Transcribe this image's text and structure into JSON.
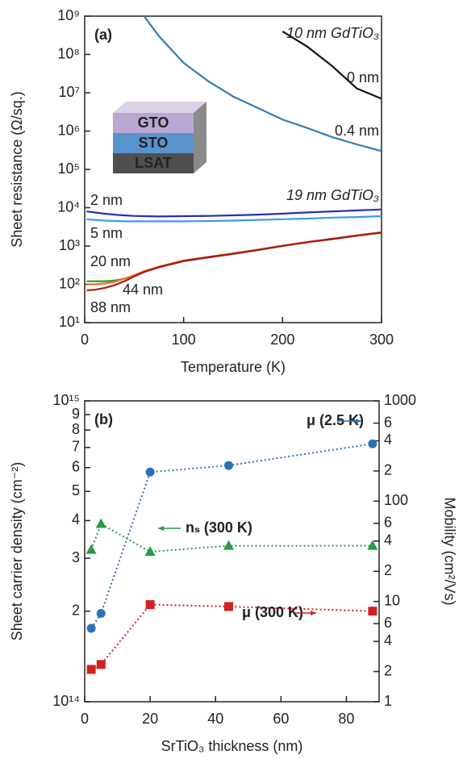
{
  "chart_data": [
    {
      "type": "line",
      "title": "(a)",
      "x": [
        2,
        10,
        20,
        30,
        40,
        50,
        60,
        75,
        100,
        125,
        150,
        175,
        200,
        225,
        250,
        275,
        300
      ],
      "series": [
        {
          "name": "0 nm",
          "color": "#111111",
          "values": [
            null,
            null,
            null,
            null,
            null,
            null,
            null,
            null,
            null,
            null,
            null,
            null,
            400000000,
            160000000,
            50000000,
            13000000,
            7000000
          ]
        },
        {
          "name": "0.4 nm",
          "color": "#2f7fb8",
          "values": [
            null,
            null,
            null,
            null,
            null,
            null,
            1000000000,
            300000000,
            60000000,
            20000000,
            8000000,
            4000000,
            2000000,
            1200000,
            700000,
            450000,
            300000
          ]
        },
        {
          "name": "2 nm",
          "color": "#2a2fb0",
          "values": [
            8000,
            7500,
            7000,
            6600,
            6300,
            6100,
            6000,
            5900,
            6000,
            6100,
            6300,
            6600,
            7000,
            7500,
            8000,
            8500,
            9000
          ]
        },
        {
          "name": "5 nm",
          "color": "#3b9de0",
          "values": [
            5000,
            4800,
            4600,
            4500,
            4400,
            4400,
            4400,
            4400,
            4400,
            4500,
            4600,
            4800,
            5000,
            5200,
            5500,
            5700,
            6000
          ]
        },
        {
          "name": "20 nm",
          "color": "#2a9a2a",
          "values": [
            120,
            120,
            120,
            125,
            140,
            170,
            210,
            280,
            400,
            500,
            620,
            780,
            1000,
            1250,
            1500,
            1850,
            2200
          ]
        },
        {
          "name": "44 nm",
          "color": "#f07020",
          "values": [
            100,
            100,
            105,
            115,
            140,
            175,
            220,
            290,
            420,
            520,
            640,
            800,
            1020,
            1270,
            1550,
            1900,
            2300
          ]
        },
        {
          "name": "88 nm",
          "color": "#b01515",
          "values": [
            70,
            72,
            80,
            95,
            120,
            160,
            210,
            280,
            410,
            510,
            630,
            790,
            1010,
            1260,
            1530,
            1870,
            2250
          ]
        }
      ],
      "xlim": [
        0,
        300
      ],
      "xticks": [
        0,
        100,
        200,
        300
      ],
      "ylim": [
        10,
        1000000000
      ],
      "yticks": [
        {
          "value": 10,
          "label": "10¹"
        },
        {
          "value": 100,
          "label": "10²"
        },
        {
          "value": 1000,
          "label": "10³"
        },
        {
          "value": 10000,
          "label": "10⁴"
        },
        {
          "value": 100000,
          "label": "10⁵"
        },
        {
          "value": 1000000,
          "label": "10⁶"
        },
        {
          "value": 10000000,
          "label": "10⁷"
        },
        {
          "value": 100000000,
          "label": "10⁸"
        },
        {
          "value": 1000000000,
          "label": "10⁹"
        }
      ],
      "log_y": true,
      "xlabel": "Temperature (K)",
      "ylabel": "Sheet resistance (Ω/sq.)",
      "annotations": [
        "10 nm GdTiO₃",
        "19 nm GdTiO₃"
      ],
      "inset_labels": [
        "GTO",
        "STO",
        "LSAT"
      ]
    },
    {
      "type": "line",
      "title": "(b)",
      "x": [
        2,
        5,
        20,
        44,
        88
      ],
      "series": [
        {
          "name": "μ (2.5 K)",
          "color": "#2a72b5",
          "marker": "circle",
          "axis": "y2",
          "values": [
            5.4,
            7.6,
            195,
            227,
            373
          ]
        },
        {
          "name": "nₛ (300 K)",
          "color": "#2a9a4a",
          "marker": "triangle",
          "values": [
            320000000000000.0,
            390000000000000.0,
            315000000000000.0,
            330000000000000.0,
            330000000000000.0
          ]
        },
        {
          "name": "μ (300 K)",
          "color": "#d42020",
          "marker": "square",
          "axis": "y2",
          "values": [
            2.1,
            2.35,
            9.3,
            8.9,
            8.0
          ]
        }
      ],
      "xlim": [
        0,
        90
      ],
      "xticks": [
        0,
        20,
        40,
        60,
        80
      ],
      "ylim": [
        100000000000000.0,
        1000000000000000.0
      ],
      "yticks": [
        {
          "value": 100000000000000.0,
          "label": "10¹⁴"
        },
        {
          "value": 200000000000000.0,
          "label": "2"
        },
        {
          "value": 300000000000000.0,
          "label": "3"
        },
        {
          "value": 400000000000000.0,
          "label": "4"
        },
        {
          "value": 500000000000000.0,
          "label": "5"
        },
        {
          "value": 600000000000000.0,
          "label": "6"
        },
        {
          "value": 700000000000000.0,
          "label": "7"
        },
        {
          "value": 800000000000000.0,
          "label": "8"
        },
        {
          "value": 900000000000000.0,
          "label": "9"
        },
        {
          "value": 1000000000000000.0,
          "label": "10¹⁵"
        }
      ],
      "y2lim": [
        1,
        1000
      ],
      "y2ticks": [
        1,
        2,
        4,
        6,
        10,
        {
          "value": 20,
          "label": "2"
        },
        {
          "value": 40,
          "label": "4"
        },
        {
          "value": 60,
          "label": "6"
        },
        100,
        {
          "value": 200,
          "label": "2"
        },
        {
          "value": 400,
          "label": "4"
        },
        {
          "value": 600,
          "label": "6"
        },
        1000
      ],
      "log_y": true,
      "xlabel": "SrTiO₃ thickness (nm)",
      "ylabel": "Sheet carrier density (cm⁻²)",
      "y2label": "Mobility (cm²/Vs)"
    }
  ]
}
